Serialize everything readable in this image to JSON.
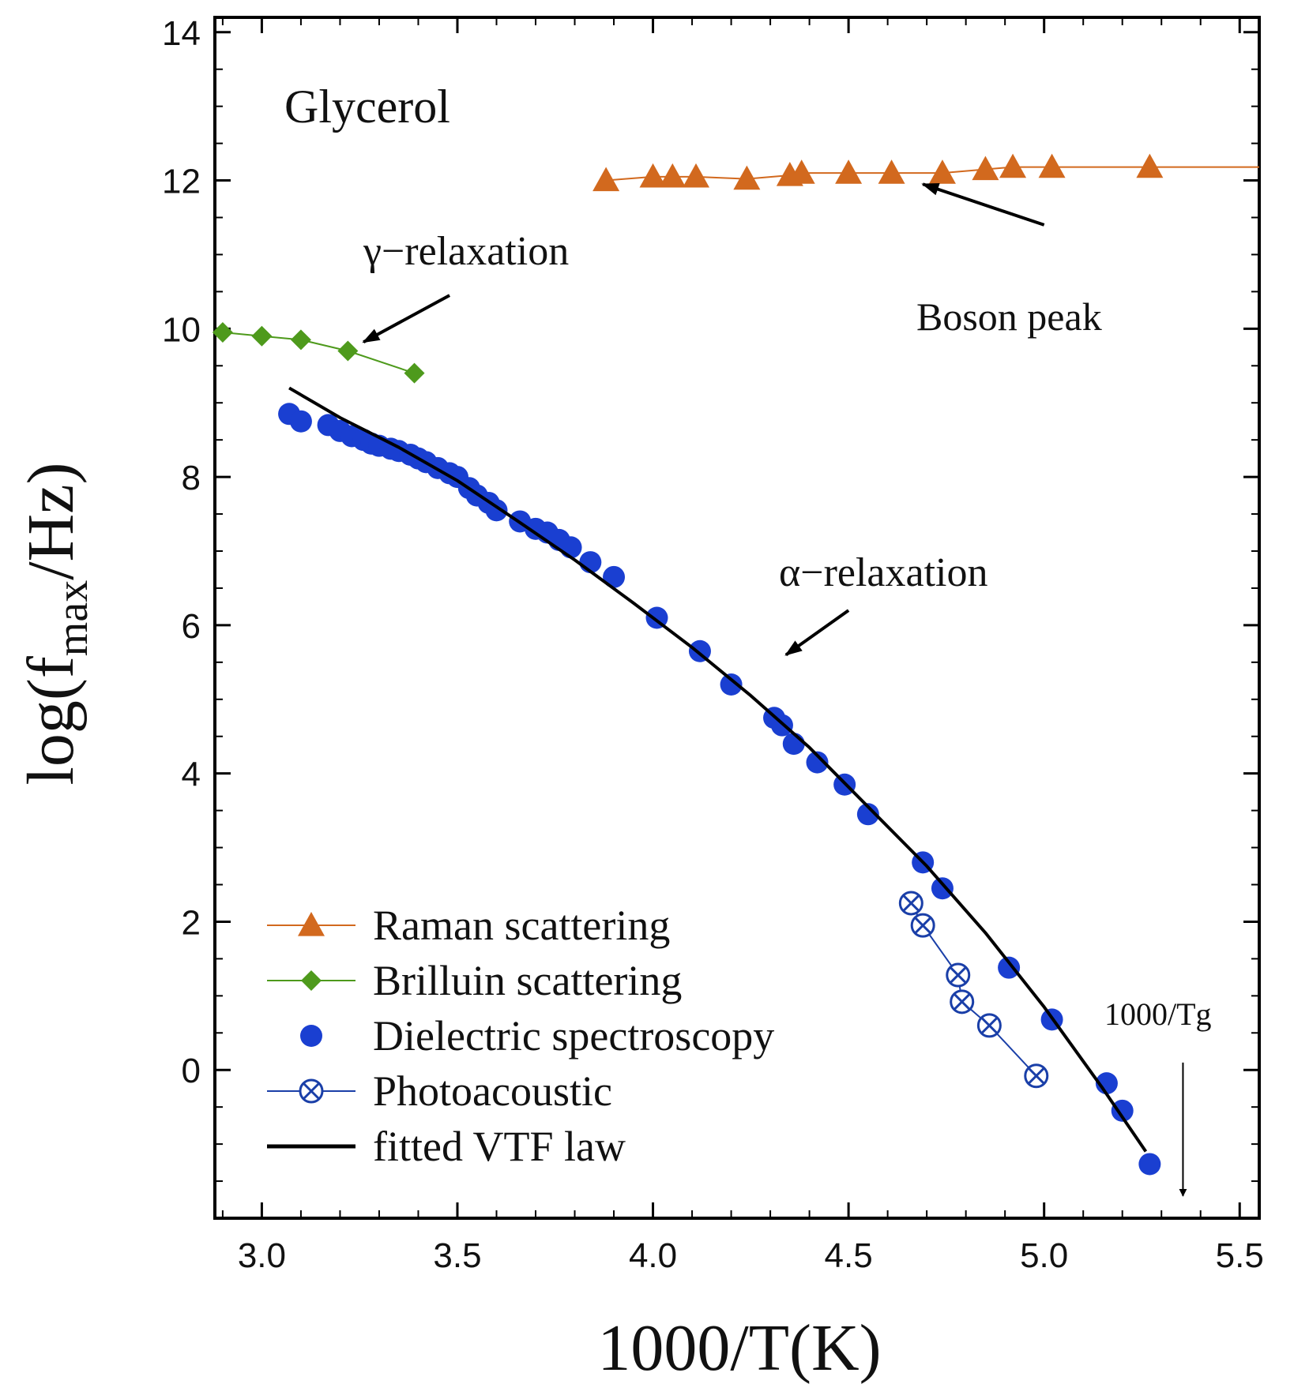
{
  "chart_data": {
    "type": "scatter",
    "title": "Glycerol",
    "xlabel": "1000/T(K)",
    "ylabel_parts": {
      "pre": "log(f",
      "sub": "max",
      "post": "/Hz)"
    },
    "xlim": [
      2.88,
      5.55
    ],
    "ylim": [
      -2,
      14.2
    ],
    "x_ticks": [
      3.0,
      3.5,
      4.0,
      4.5,
      5.0,
      5.5
    ],
    "x_tick_labels": [
      "3.0",
      "3.5",
      "4.0",
      "4.5",
      "5.0",
      "5.5"
    ],
    "y_ticks": [
      0,
      2,
      4,
      6,
      8,
      10,
      12,
      14
    ],
    "y_tick_labels": [
      "0",
      "2",
      "4",
      "6",
      "8",
      "10",
      "12",
      "14"
    ],
    "series": [
      {
        "name": "Raman scattering",
        "marker": "triangle",
        "color": "#d2691e",
        "line": true,
        "extend_to_x": 5.55,
        "x": [
          3.88,
          4.0,
          4.05,
          4.11,
          4.24,
          4.35,
          4.38,
          4.5,
          4.61,
          4.74,
          4.85,
          4.92,
          5.02,
          5.27
        ],
        "y": [
          12.0,
          12.05,
          12.05,
          12.05,
          12.02,
          12.07,
          12.1,
          12.1,
          12.1,
          12.1,
          12.15,
          12.18,
          12.18,
          12.18
        ]
      },
      {
        "name": "Brilluin scattering",
        "marker": "diamond",
        "color": "#4e9a1c",
        "line": true,
        "x": [
          2.9,
          3.0,
          3.1,
          3.22,
          3.39
        ],
        "y": [
          9.95,
          9.9,
          9.85,
          9.7,
          9.4
        ]
      },
      {
        "name": "Dielectric spectroscopy",
        "marker": "circle",
        "color": "#1a3fd1",
        "line": false,
        "x": [
          3.07,
          3.1,
          3.17,
          3.2,
          3.23,
          3.26,
          3.28,
          3.3,
          3.33,
          3.35,
          3.38,
          3.4,
          3.42,
          3.45,
          3.48,
          3.5,
          3.53,
          3.55,
          3.58,
          3.6,
          3.66,
          3.7,
          3.73,
          3.76,
          3.79,
          3.84,
          3.9,
          4.01,
          4.12,
          4.2,
          4.31,
          4.33,
          4.36,
          4.42,
          4.49,
          4.55,
          4.69,
          4.74,
          4.91,
          5.02,
          5.16,
          5.2,
          5.27
        ],
        "y": [
          8.85,
          8.75,
          8.7,
          8.62,
          8.55,
          8.5,
          8.45,
          8.42,
          8.38,
          8.35,
          8.3,
          8.25,
          8.2,
          8.12,
          8.05,
          8.0,
          7.85,
          7.75,
          7.65,
          7.55,
          7.4,
          7.3,
          7.25,
          7.15,
          7.05,
          6.85,
          6.65,
          6.1,
          5.65,
          5.2,
          4.75,
          4.65,
          4.4,
          4.15,
          3.85,
          3.45,
          2.8,
          2.45,
          1.38,
          0.68,
          -0.18,
          -0.55,
          -1.27
        ]
      },
      {
        "name": "Photoacoustic",
        "marker": "circle-x",
        "color": "#1a3fa8",
        "line": true,
        "x": [
          4.66,
          4.69,
          4.78,
          4.79,
          4.86,
          4.98
        ],
        "y": [
          2.25,
          1.95,
          1.28,
          0.92,
          0.6,
          -0.08
        ]
      },
      {
        "name": "fitted VTF law",
        "marker": "none",
        "color": "#000000",
        "line": true,
        "x": [
          3.07,
          3.2,
          3.35,
          3.5,
          3.65,
          3.8,
          3.95,
          4.1,
          4.25,
          4.4,
          4.55,
          4.7,
          4.85,
          5.0,
          5.15,
          5.26
        ],
        "y": [
          9.2,
          8.8,
          8.4,
          7.95,
          7.42,
          6.88,
          6.3,
          5.7,
          5.05,
          4.35,
          3.55,
          2.75,
          1.85,
          0.85,
          -0.25,
          -1.1
        ]
      }
    ],
    "annotations": [
      {
        "text": "Glycerol",
        "kind": "title"
      },
      {
        "text": "γ−relaxation",
        "arrow_from": [
          3.48,
          10.45
        ],
        "arrow_to": [
          3.26,
          9.82
        ]
      },
      {
        "text": "Boson peak",
        "arrow_from": [
          5.0,
          11.4
        ],
        "arrow_to": [
          4.69,
          11.95
        ]
      },
      {
        "text": "α−relaxation",
        "arrow_from": [
          4.5,
          6.2
        ],
        "arrow_to": [
          4.34,
          5.6
        ]
      },
      {
        "text": "1000/Tg",
        "arrow_from": [
          5.355,
          0.1
        ],
        "arrow_to": [
          5.355,
          -1.7
        ]
      }
    ],
    "legend_position": "bottom-left"
  }
}
